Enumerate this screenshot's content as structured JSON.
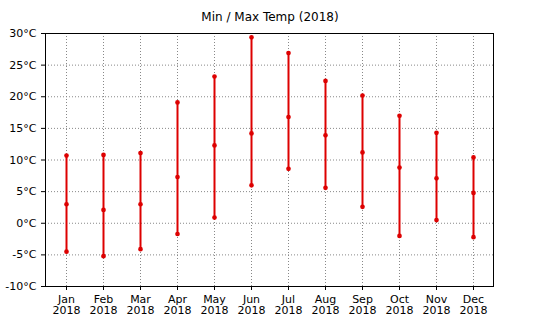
{
  "chart_data": {
    "type": "range",
    "title": "Min / Max Temp (2018)",
    "categories": [
      "Jan 2018",
      "Feb 2018",
      "Mar 2018",
      "Apr 2018",
      "May 2018",
      "Jun 2018",
      "Jul 2018",
      "Aug 2018",
      "Sep 2018",
      "Oct 2018",
      "Nov 2018",
      "Dec 2018"
    ],
    "min": [
      -4.5,
      -5.2,
      -4.1,
      -1.7,
      0.9,
      6.0,
      8.6,
      5.6,
      2.6,
      -2.0,
      0.5,
      -2.2
    ],
    "mean": [
      3.0,
      2.1,
      3.0,
      7.3,
      12.3,
      14.2,
      16.8,
      13.9,
      11.2,
      8.8,
      7.1,
      4.8
    ],
    "max": [
      10.7,
      10.8,
      11.1,
      19.1,
      23.2,
      29.4,
      26.9,
      22.5,
      20.2,
      17.0,
      14.3,
      10.4
    ],
    "color": "#dd0000",
    "marker": "dot",
    "ylim": [
      -10,
      30
    ],
    "yticks": [
      {
        "value": -10,
        "label": "-10°C"
      },
      {
        "value": -5,
        "label": "-5°C"
      },
      {
        "value": 0,
        "label": "0°C"
      },
      {
        "value": 5,
        "label": "5°C"
      },
      {
        "value": 10,
        "label": "10°C"
      },
      {
        "value": 15,
        "label": "15°C"
      },
      {
        "value": 20,
        "label": "20°C"
      },
      {
        "value": 25,
        "label": "25°C"
      },
      {
        "value": 30,
        "label": "30°C"
      }
    ],
    "grid": true
  }
}
